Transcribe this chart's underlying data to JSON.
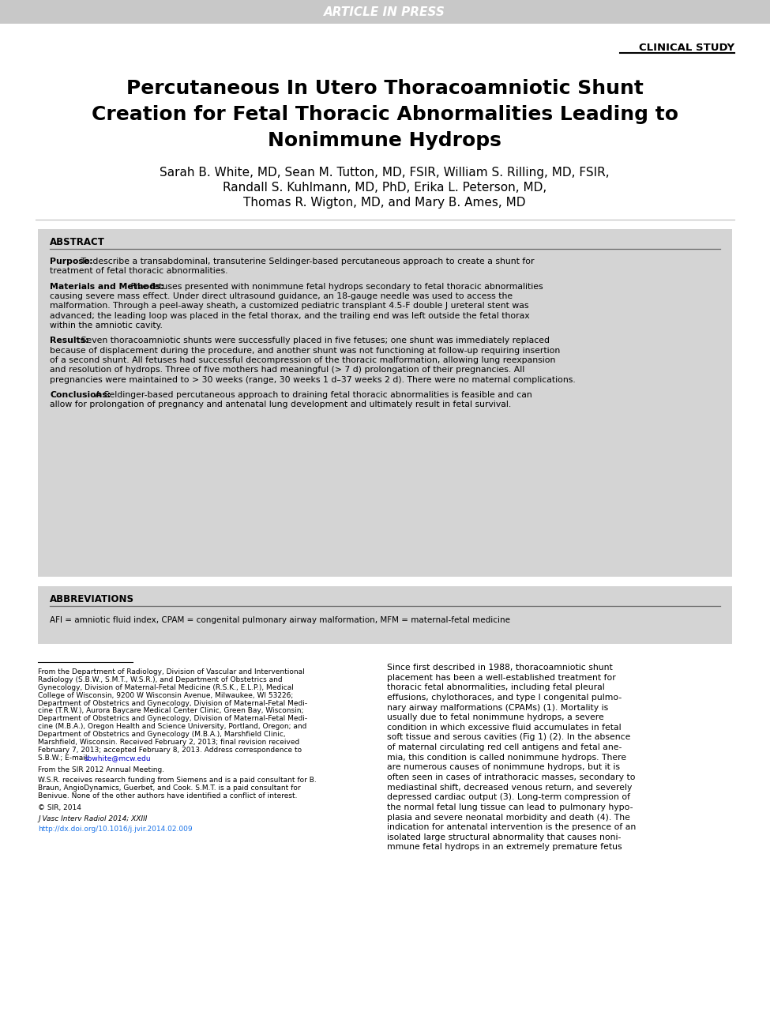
{
  "bg_color": "#ffffff",
  "header_bar_color": "#c8c8c8",
  "header_text": "ARTICLE IN PRESS",
  "header_text_color": "#ffffff",
  "clinical_study_text": "CLINICAL STUDY",
  "title_line1": "Percutaneous In Utero Thoracoamniotic Shunt",
  "title_line2": "Creation for Fetal Thoracic Abnormalities Leading to",
  "title_line3": "Nonimmune Hydrops",
  "authors_line1": "Sarah B. White, MD, Sean M. Tutton, MD, FSIR, William S. Rilling, MD, FSIR,",
  "authors_line2": "Randall S. Kuhlmann, MD, PhD, Erika L. Peterson, MD,",
  "authors_line3": "Thomas R. Wigton, MD, and Mary B. Ames, MD",
  "abstract_header": "ABSTRACT",
  "abstract_bg": "#d4d4d4",
  "purpose_label": "Purpose:",
  "purpose_text": " To describe a transabdominal, transuterine Seldinger-based percutaneous approach to create a shunt for treatment of fetal thoracic abnormalities.",
  "methods_label": "Materials and Methods:",
  "methods_text": " Five fetuses presented with nonimmune fetal hydrops secondary to fetal thoracic abnormalities causing severe mass effect. Under direct ultrasound guidance, an 18-gauge needle was used to access the malformation. Through a peel-away sheath, a customized pediatric transplant 4.5-F double J ureteral stent was advanced; the leading loop was placed in the fetal thorax, and the trailing end was left outside the fetal thorax within the amniotic cavity.",
  "results_label": "Results:",
  "results_text": " Seven thoracoamniotic shunts were successfully placed in five fetuses; one shunt was immediately replaced because of displacement during the procedure, and another shunt was not functioning at follow-up requiring insertion of a second shunt. All fetuses had successful decompression of the thoracic malformation, allowing lung reexpansion and resolution of hydrops. Three of five mothers had meaningful (> 7 d) prolongation of their pregnancies. All pregnancies were maintained to > 30 weeks (range, 30 weeks 1 d–37 weeks 2 d). There were no maternal complications.",
  "conclusions_label": "Conclusions:",
  "conclusions_text": " A Seldinger-based percutaneous approach to draining fetal thoracic abnormalities is feasible and can allow for prolongation of pregnancy and antenatal lung development and ultimately result in fetal survival.",
  "abbrev_header": "ABBREVIATIONS",
  "abbrev_bg": "#d4d4d4",
  "abbrev_text": "AFI = amniotic fluid index, CPAM = congenital pulmonary airway malformation, MFM = maternal-fetal medicine",
  "fn_lines": [
    "From the Department of Radiology, Division of Vascular and Interventional",
    "Radiology (S.B.W., S.M.T., W.S.R.), and Department of Obstetrics and",
    "Gynecology, Division of Maternal-Fetal Medicine (R.S.K., E.L.P.), Medical",
    "College of Wisconsin, 9200 W Wisconsin Avenue, Milwaukee, WI 53226;",
    "Department of Obstetrics and Gynecology, Division of Maternal-Fetal Medi-",
    "cine (T.R.W.), Aurora Baycare Medical Center Clinic, Green Bay, Wisconsin;",
    "Department of Obstetrics and Gynecology, Division of Maternal-Fetal Medi-",
    "cine (M.B.A.), Oregon Health and Science University, Portland, Oregon; and",
    "Department of Obstetrics and Gynecology (M.B.A.), Marshfield Clinic,",
    "Marshfield, Wisconsin. Received February 2, 2013; final revision received",
    "February 7, 2013; accepted February 8, 2013. Address correspondence to",
    "S.B.W.; E-mail: sbwhite@mcw.edu"
  ],
  "fn_email": "sbwhite@mcw.edu",
  "fn_extra1": "From the SIR 2012 Annual Meeting.",
  "fn_extra2_lines": [
    "W.S.R. receives research funding from Siemens and is a paid consultant for B.",
    "Braun, AngioDynamics, Guerbet, and Cook. S.M.T. is a paid consultant for",
    "Benivue. None of the other authors have identified a conflict of interest."
  ],
  "fn_copyright": "© SIR, 2014",
  "fn_journal": "J Vasc Interv Radiol 2014; XXIII",
  "fn_doi": "http://dx.doi.org/10.1016/j.jvir.2014.02.009",
  "body_lines": [
    "Since first described in 1988, thoracoamniotic shunt",
    "placement has been a well-established treatment for",
    "thoracic fetal abnormalities, including fetal pleural",
    "effusions, chylothoraces, and type I congenital pulmo-",
    "nary airway malformations (CPAMs) (1). Mortality is",
    "usually due to fetal nonimmune hydrops, a severe",
    "condition in which excessive fluid accumulates in fetal",
    "soft tissue and serous cavities (Fig 1) (2). In the absence",
    "of maternal circulating red cell antigens and fetal ane-",
    "mia, this condition is called nonimmune hydrops. There",
    "are numerous causes of nonimmune hydrops, but it is",
    "often seen in cases of intrathoracic masses, secondary to",
    "mediastinal shift, decreased venous return, and severely",
    "depressed cardiac output (3). Long-term compression of",
    "the normal fetal lung tissue can lead to pulmonary hypo-",
    "plasia and severe neonatal morbidity and death (4). The",
    "indication for antenatal intervention is the presence of an",
    "isolated large structural abnormality that causes noni-",
    "mmune fetal hydrops in an extremely premature fetus"
  ]
}
